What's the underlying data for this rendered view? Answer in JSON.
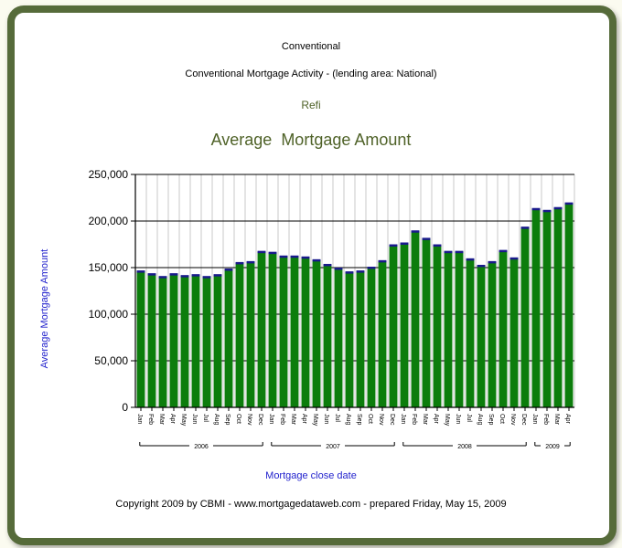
{
  "header": {
    "line1": "Conventional",
    "line2": "Conventional Mortgage Activity - (lending area: National)",
    "line3": "Refi"
  },
  "footer": {
    "copyright": "Copyright 2009 by CBMI - www.mortgagedataweb.com - prepared Friday, May 15, 2009"
  },
  "colors": {
    "bar": "#0c7d0c",
    "bar_top": "#1a1a8c",
    "title": "#4f6228",
    "axis_title": "#1f1fcc",
    "frame": "#566b3a"
  },
  "chart_data": {
    "type": "bar",
    "title": "Average  Mortgage Amount",
    "xlabel": "Mortgage close date",
    "ylabel": "Average Mortgage Amount",
    "ylim": [
      0,
      250000
    ],
    "yticks": [
      "0",
      "50,000",
      "100,000",
      "150,000",
      "200,000",
      "250,000"
    ],
    "grid": true,
    "legend": "none",
    "categories": [
      "Jan",
      "Feb",
      "Mar",
      "Apr",
      "May",
      "Jun",
      "Jul",
      "Aug",
      "Sep",
      "Oct",
      "Nov",
      "Dec",
      "Jan",
      "Feb",
      "Mar",
      "Apr",
      "May",
      "Jun",
      "Jul",
      "Aug",
      "Sep",
      "Oct",
      "Nov",
      "Dec",
      "Jan",
      "Feb",
      "Mar",
      "Apr",
      "May",
      "Jun",
      "Jul",
      "Aug",
      "Sep",
      "Oct",
      "Nov",
      "Dec",
      "Jan",
      "Feb",
      "Mar",
      "Apr"
    ],
    "year_groups": [
      {
        "label": "2006",
        "count": 12
      },
      {
        "label": "2007",
        "count": 12
      },
      {
        "label": "2008",
        "count": 12
      },
      {
        "label": "2009",
        "count": 4
      }
    ],
    "values": [
      146000,
      143000,
      140000,
      143000,
      141000,
      142000,
      140000,
      142000,
      148000,
      155000,
      156000,
      167000,
      166000,
      162000,
      162000,
      161000,
      158000,
      153000,
      149000,
      145000,
      146000,
      150000,
      157000,
      174000,
      176000,
      189000,
      181000,
      174000,
      167000,
      167000,
      159000,
      152000,
      156000,
      168000,
      160000,
      193000,
      213000,
      211000,
      214000,
      219000
    ]
  }
}
